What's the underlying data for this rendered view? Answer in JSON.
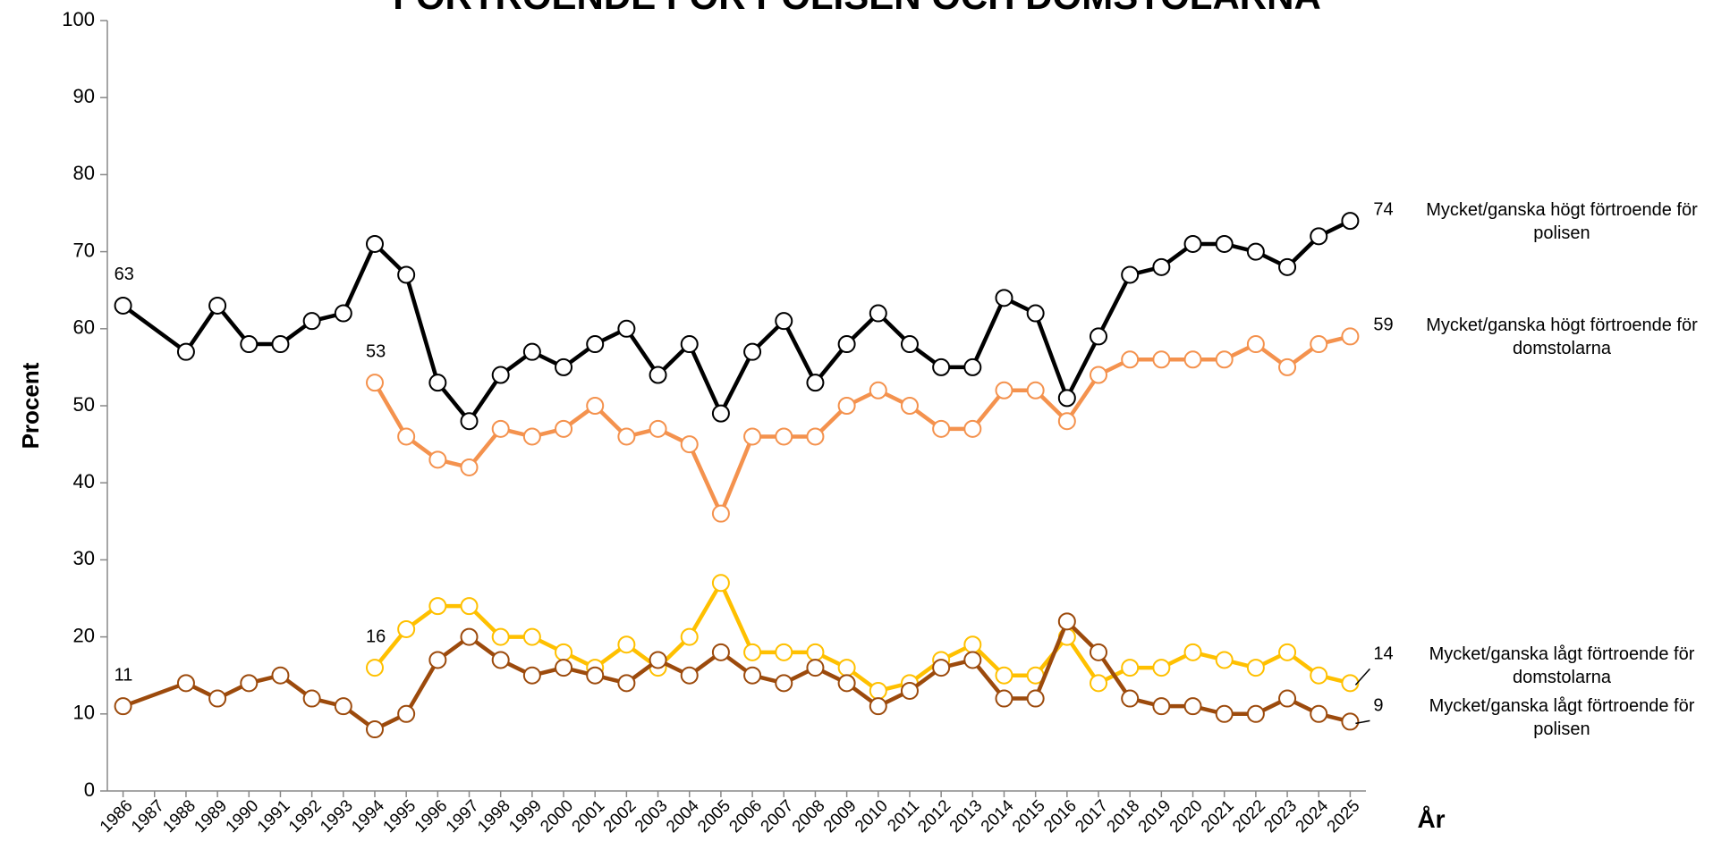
{
  "chart_data": {
    "type": "line",
    "title": "FÖRTROENDE FÖR POLISEN OCH DOMSTOLARNA",
    "y_label": "Procent",
    "x_label": "År",
    "xlim": [
      1985.5,
      2025.5
    ],
    "xticks": [
      1986,
      1987,
      1988,
      1989,
      1990,
      1991,
      1992,
      1993,
      1994,
      1995,
      1996,
      1997,
      1998,
      1999,
      2000,
      2001,
      2002,
      2003,
      2004,
      2005,
      2006,
      2007,
      2008,
      2009,
      2010,
      2011,
      2012,
      2013,
      2014,
      2015,
      2016,
      2017,
      2018,
      2019,
      2020,
      2021,
      2022,
      2023,
      2024,
      2025
    ],
    "ylim": [
      0,
      100
    ],
    "yticks": [
      0,
      10,
      20,
      30,
      40,
      50,
      60,
      70,
      80,
      90,
      100
    ],
    "series": [
      {
        "name": "Mycket/ganska högt förtroende för polisen",
        "color": "#000000",
        "x": [
          1986,
          1988,
          1989,
          1990,
          1991,
          1992,
          1993,
          1994,
          1995,
          1996,
          1997,
          1998,
          1999,
          2000,
          2001,
          2002,
          2003,
          2004,
          2005,
          2006,
          2007,
          2008,
          2009,
          2010,
          2011,
          2012,
          2013,
          2014,
          2015,
          2016,
          2017,
          2018,
          2019,
          2020,
          2021,
          2022,
          2023,
          2024,
          2025
        ],
        "values": [
          63,
          57,
          63,
          58,
          58,
          61,
          62,
          71,
          67,
          53,
          48,
          54,
          57,
          55,
          58,
          60,
          54,
          58,
          49,
          57,
          61,
          53,
          58,
          62,
          58,
          55,
          55,
          64,
          62,
          51,
          59,
          67,
          68,
          71,
          71,
          70,
          68,
          72,
          74
        ]
      },
      {
        "name": "Mycket/ganska högt förtroende för domstolarna",
        "color": "#f4924e",
        "x": [
          1994,
          1995,
          1996,
          1997,
          1998,
          1999,
          2000,
          2001,
          2002,
          2003,
          2004,
          2005,
          2006,
          2007,
          2008,
          2009,
          2010,
          2011,
          2012,
          2013,
          2014,
          2015,
          2016,
          2017,
          2018,
          2019,
          2020,
          2021,
          2022,
          2023,
          2024,
          2025
        ],
        "values": [
          53,
          46,
          43,
          42,
          47,
          46,
          47,
          50,
          46,
          47,
          45,
          36,
          46,
          46,
          46,
          50,
          52,
          50,
          47,
          47,
          52,
          52,
          48,
          54,
          56,
          56,
          56,
          56,
          58,
          55,
          58,
          59
        ]
      },
      {
        "name": "Mycket/ganska lågt förtroende för domstolarna",
        "color": "#ffc000",
        "x": [
          1994,
          1995,
          1996,
          1997,
          1998,
          1999,
          2000,
          2001,
          2002,
          2003,
          2004,
          2005,
          2006,
          2007,
          2008,
          2009,
          2010,
          2011,
          2012,
          2013,
          2014,
          2015,
          2016,
          2017,
          2018,
          2019,
          2020,
          2021,
          2022,
          2023,
          2024,
          2025
        ],
        "values": [
          16,
          21,
          24,
          24,
          20,
          20,
          18,
          16,
          19,
          16,
          20,
          27,
          18,
          18,
          18,
          16,
          13,
          14,
          17,
          19,
          15,
          15,
          20,
          14,
          16,
          16,
          18,
          17,
          16,
          18,
          15,
          14
        ]
      },
      {
        "name": "Mycket/ganska lågt förtroende för polisen",
        "color": "#9c4a0c",
        "x": [
          1986,
          1988,
          1989,
          1990,
          1991,
          1992,
          1993,
          1994,
          1995,
          1996,
          1997,
          1998,
          1999,
          2000,
          2001,
          2002,
          2003,
          2004,
          2005,
          2006,
          2007,
          2008,
          2009,
          2010,
          2011,
          2012,
          2013,
          2014,
          2015,
          2016,
          2017,
          2018,
          2019,
          2020,
          2021,
          2022,
          2023,
          2024,
          2025
        ],
        "values": [
          11,
          14,
          12,
          14,
          15,
          12,
          11,
          8,
          10,
          17,
          20,
          17,
          15,
          16,
          15,
          14,
          17,
          15,
          18,
          15,
          14,
          16,
          14,
          11,
          13,
          16,
          17,
          12,
          12,
          22,
          18,
          12,
          11,
          11,
          10,
          10,
          12,
          10,
          9
        ]
      }
    ]
  }
}
